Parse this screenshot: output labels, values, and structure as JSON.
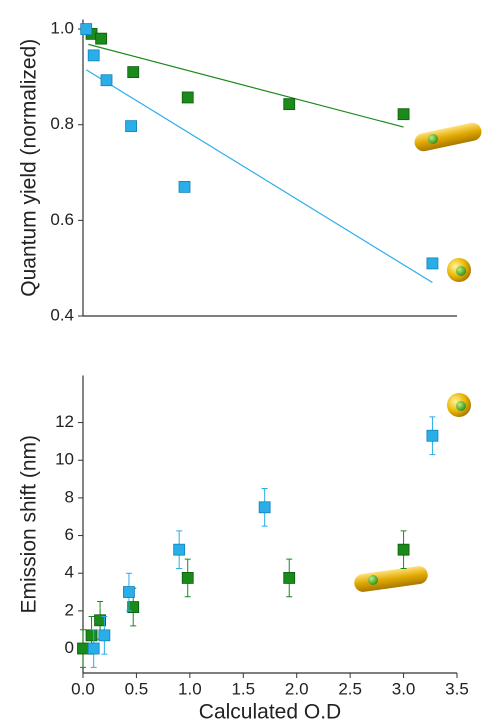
{
  "chart_data": [
    {
      "type": "scatter",
      "ylabel": "Quantum yield (normalized)",
      "xlim": [
        0,
        3.5
      ],
      "ylim": [
        0.4,
        1.02
      ],
      "yticks": [
        {
          "value": 0.4,
          "label": "0.4"
        },
        {
          "value": 0.6,
          "label": "0.6"
        },
        {
          "value": 0.8,
          "label": "0.8"
        },
        {
          "value": 1.0,
          "label": "1.0"
        }
      ],
      "series": [
        {
          "color": "#1a8a1a",
          "x": [
            0.08,
            0.17,
            0.47,
            0.98,
            1.93,
            3.0
          ],
          "values": [
            0.99,
            0.98,
            0.91,
            0.857,
            0.843,
            0.822
          ]
        },
        {
          "color": "#29aee8",
          "x": [
            0.03,
            0.1,
            0.22,
            0.45,
            0.95,
            3.27
          ],
          "values": [
            1.0,
            0.945,
            0.893,
            0.797,
            0.67,
            0.51
          ]
        }
      ],
      "fits": [
        {
          "color": "#1a8a1a",
          "x": [
            0.05,
            3.0
          ],
          "values": [
            0.968,
            0.795
          ]
        },
        {
          "color": "#29aee8",
          "x": [
            0.03,
            3.27
          ],
          "values": [
            0.915,
            0.47
          ]
        }
      ]
    },
    {
      "type": "scatter",
      "ylabel": "Emission shift (nm)",
      "xlabel": "Calculated O.D",
      "xlim": [
        0,
        3.5
      ],
      "ylim": [
        -1.3,
        14.5
      ],
      "xticks": [
        {
          "value": 0,
          "label": "0.0"
        },
        {
          "value": 0.5,
          "label": "0.5"
        },
        {
          "value": 1,
          "label": "1.0"
        },
        {
          "value": 1.5,
          "label": "1.5"
        },
        {
          "value": 2,
          "label": "2.0"
        },
        {
          "value": 2.5,
          "label": "2.5"
        },
        {
          "value": 3,
          "label": "3.0"
        },
        {
          "value": 3.5,
          "label": "3.5"
        }
      ],
      "yticks": [
        0,
        2,
        4,
        6,
        8,
        10,
        12
      ],
      "series": [
        {
          "color": "#1a8a1a",
          "x": [
            0.0,
            0.08,
            0.16,
            0.47,
            0.98,
            1.93,
            3.0
          ],
          "values": [
            0,
            0.7,
            1.5,
            2.2,
            3.75,
            3.75,
            5.25
          ],
          "errors": [
            1,
            1,
            1,
            1,
            1,
            1,
            1
          ]
        },
        {
          "color": "#29aee8",
          "x": [
            0.1,
            0.2,
            0.43,
            0.9,
            1.7,
            3.27
          ],
          "values": [
            0,
            0.7,
            3.0,
            5.25,
            7.5,
            11.3
          ],
          "errors": [
            1,
            1,
            1,
            1,
            1,
            1
          ]
        }
      ]
    }
  ]
}
